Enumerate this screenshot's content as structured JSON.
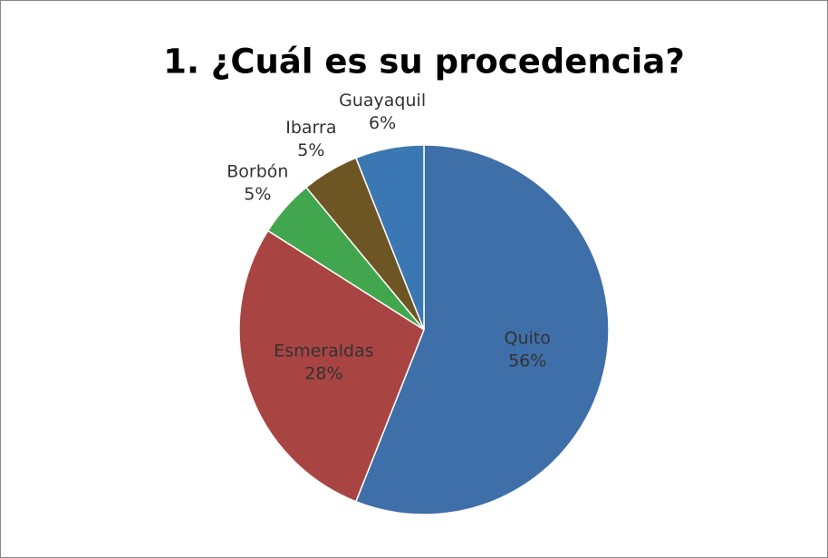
{
  "chart_data": {
    "type": "pie",
    "title": "1. ¿Cuál es su procedencia?",
    "categories": [
      "Quito",
      "Esmeraldas",
      "Borbón",
      "Ibarra",
      "Guayaquil"
    ],
    "values": [
      56,
      28,
      5,
      5,
      6
    ],
    "value_labels": [
      "56%",
      "28%",
      "5%",
      "5%",
      "6%"
    ],
    "colors": [
      "#3e6fa8",
      "#a84442",
      "#41a64e",
      "#6e5524",
      "#3b77b3"
    ]
  }
}
